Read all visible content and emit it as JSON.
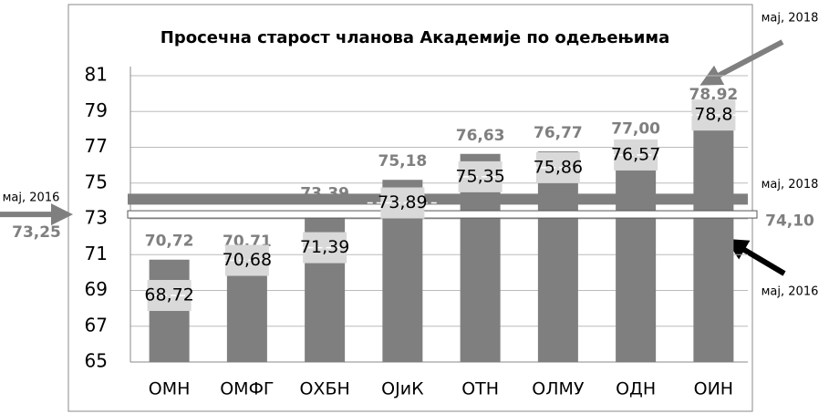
{
  "chart_data": {
    "type": "bar",
    "title": "Просечна старост чланова Академије по одељењима",
    "categories": [
      "ОМН",
      "ОМФГ",
      "ОХБН",
      "ОЈиК",
      "ОТН",
      "ОЛМУ",
      "ОДН",
      "ОИН"
    ],
    "series": [
      {
        "name": "мај, 2018",
        "color": "#7f7f7f",
        "values": [
          70.72,
          70.71,
          73.39,
          75.18,
          76.63,
          76.77,
          77.0,
          78.92
        ],
        "value_labels": [
          "70,72",
          "70,71",
          "73,39",
          "75,18",
          "76,63",
          "76,77",
          "77,00",
          "78,92"
        ]
      },
      {
        "name": "мај, 2016",
        "color": "#d9d9d9",
        "values": [
          68.72,
          70.68,
          71.39,
          73.89,
          75.35,
          75.86,
          76.57,
          78.8
        ],
        "value_labels": [
          "68,72",
          "70,68",
          "71,39",
          "73,89",
          "75,35",
          "75,86",
          "76,57",
          "78,8"
        ]
      }
    ],
    "reference_lines": [
      {
        "label": "мај, 2018",
        "value": 74.1,
        "value_label": "74,10",
        "color": "#7f7f7f"
      },
      {
        "label": "мај, 2016",
        "value": 73.25,
        "value_label": "73,25",
        "color": "#ffffff"
      }
    ],
    "annotations": [
      "мај, 2018",
      "мај, 2016"
    ],
    "ylim": [
      65,
      81
    ],
    "yticks": [
      65,
      67,
      69,
      71,
      73,
      75,
      77,
      79,
      81
    ],
    "grid": true
  }
}
